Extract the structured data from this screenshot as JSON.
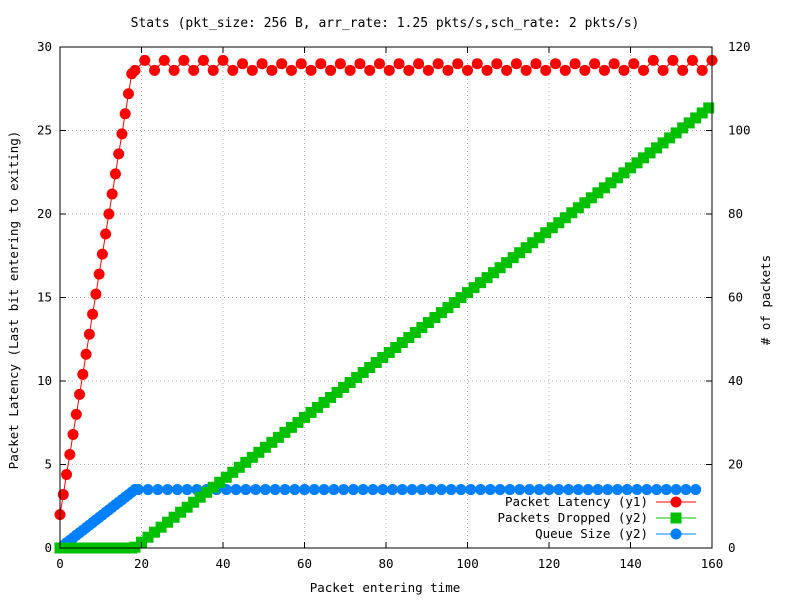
{
  "chart_data": {
    "type": "line",
    "title": "Stats (pkt_size: 256 B, arr_rate: 1.25 pkts/s,sch_rate: 2 pkts/s)",
    "xlabel": "Packet entering time",
    "ylabel": "Packet Latency (Last bit entering to exiting)",
    "y2label": "# of packets",
    "xlim": [
      0,
      160
    ],
    "ylim": [
      0,
      30
    ],
    "y2lim": [
      0,
      120
    ],
    "x_ticks": [
      "0",
      "20",
      "40",
      "60",
      "80",
      "100",
      "120",
      "140",
      "160"
    ],
    "y_ticks": [
      "0",
      "5",
      "10",
      "15",
      "20",
      "25",
      "30"
    ],
    "y2_ticks": [
      "0",
      "20",
      "40",
      "60",
      "80",
      "100",
      "120"
    ],
    "grid": true,
    "legend_position": "bottom-right",
    "series": [
      {
        "name": "Packet Latency (y1)",
        "axis": "y1",
        "color": "#ff0000",
        "marker": "circle",
        "x": [
          0,
          0.8,
          1.6,
          2.4,
          3.2,
          4,
          4.8,
          5.6,
          6.4,
          7.2,
          8,
          8.8,
          9.6,
          10.4,
          11.2,
          12,
          12.8,
          13.6,
          14.4,
          15.2,
          16,
          16.8,
          17.6
        ],
        "y": [
          2,
          3.2,
          4.4,
          5.6,
          6.8,
          8,
          9.2,
          10.4,
          11.6,
          12.8,
          14,
          15.2,
          16.4,
          17.6,
          18.8,
          20,
          21.2,
          22.4,
          23.6,
          24.8,
          26,
          27.2,
          28.4
        ],
        "plateau": {
          "x_start": 18.4,
          "x_end": 160,
          "step": 2.4,
          "base": 28.6,
          "early_peak": 29.2,
          "late_peak": 29.0
        }
      },
      {
        "name": "Packets Dropped (y2)",
        "axis": "y2",
        "color": "#00c000",
        "marker": "square",
        "zero_until": 18,
        "x_start": 18.4,
        "x_end": 160,
        "step": 1.6,
        "y_at_start": 0.2,
        "y_at_end": 106
      },
      {
        "name": "Queue Size (y2)",
        "axis": "y2",
        "color": "#0080ff",
        "marker": "circle",
        "ramp": {
          "x_start": 0,
          "x_end": 18.4,
          "y_start": 0,
          "y_end": 14
        },
        "plateau": {
          "x_start": 19.2,
          "x_end": 158,
          "y": 14
        }
      }
    ]
  }
}
